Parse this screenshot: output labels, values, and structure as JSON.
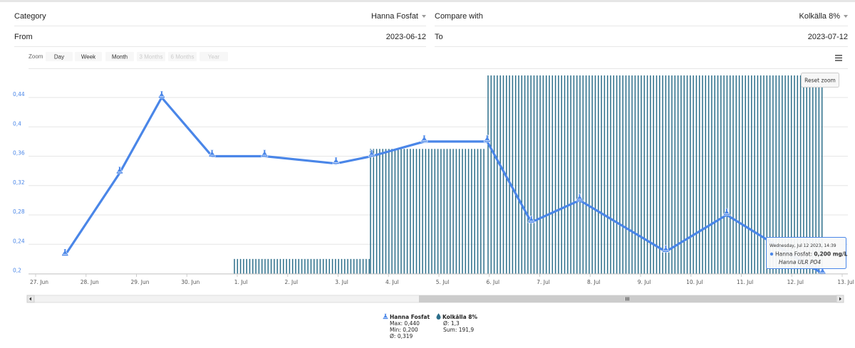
{
  "form": {
    "category_label": "Category",
    "category_value": "Hanna Fosfat",
    "compare_label": "Compare with",
    "compare_value": "Kolkälla 8%",
    "from_label": "From",
    "from_value": "2023-06-12",
    "to_label": "To",
    "to_value": "2023-07-12"
  },
  "zoom": {
    "label": "Zoom",
    "buttons": [
      "Day",
      "Week",
      "Month",
      "3 Months",
      "6 Months",
      "Year"
    ],
    "disabled": [
      false,
      false,
      false,
      true,
      true,
      true
    ]
  },
  "reset_zoom_label": "Reset zoom",
  "tooltip": {
    "date": "Wednesday, Jul 12 2023, 14:39",
    "series": "Hanna Fosfat",
    "value": "0,200 mg/L",
    "sub": "Hanna ULR PO4"
  },
  "legend": [
    {
      "name": "Hanna Fosfat",
      "stats": [
        "Max: 0,440",
        "Min: 0,200",
        "Ø: 0,319"
      ]
    },
    {
      "name": "Kolkälla 8%",
      "stats": [
        "Ø: 1,3",
        "Sum: 191,9"
      ]
    }
  ],
  "colors": {
    "line": "#4a86e8",
    "bars": "#2c6e8a",
    "axis_label": "#4a86e8"
  },
  "chart_data": {
    "type": "line",
    "x_unit": "days",
    "x_ticks": [
      "27. Jun",
      "28. Jun",
      "29. Jun",
      "30. Jun",
      "1. Jul",
      "2. Jul",
      "3. Jul",
      "4. Jul",
      "5. Jul",
      "6. Jul",
      "7. Jul",
      "8. Jul",
      "9. Jul",
      "10. Jul",
      "11. Jul",
      "12. Jul",
      "13. Jul"
    ],
    "y_ticks": [
      "0,2",
      "0,24",
      "0,28",
      "0,32",
      "0,36",
      "0,4",
      "0,44"
    ],
    "ylim": [
      0.2,
      0.45
    ],
    "grid": true,
    "series": [
      {
        "name": "Hanna Fosfat",
        "points": [
          {
            "x": "2023-06-27 14:00",
            "y": 0.225
          },
          {
            "x": "2023-06-28 16:00",
            "y": 0.337
          },
          {
            "x": "2023-06-29 12:00",
            "y": 0.44
          },
          {
            "x": "2023-06-30 12:00",
            "y": 0.36
          },
          {
            "x": "2023-07-01 13:00",
            "y": 0.36
          },
          {
            "x": "2023-07-02 23:00",
            "y": 0.35
          },
          {
            "x": "2023-07-03 16:00",
            "y": 0.36
          },
          {
            "x": "2023-07-04 17:00",
            "y": 0.38
          },
          {
            "x": "2023-07-05 23:00",
            "y": 0.38
          },
          {
            "x": "2023-07-06 20:00",
            "y": 0.27
          },
          {
            "x": "2023-07-07 19:00",
            "y": 0.3
          },
          {
            "x": "2023-07-09 12:00",
            "y": 0.23
          },
          {
            "x": "2023-07-10 17:00",
            "y": 0.28
          },
          {
            "x": "2023-07-12 14:39",
            "y": 0.2
          }
        ]
      },
      {
        "name": "Kolkälla 8%",
        "type": "column",
        "segments": [
          {
            "from": "2023-06-30 22:00",
            "to": "2023-07-03 15:00",
            "level": 0.22
          },
          {
            "from": "2023-07-03 15:00",
            "to": "2023-07-05 23:00",
            "level": 0.37
          },
          {
            "from": "2023-07-05 23:00",
            "to": "2023-07-12 15:00",
            "level": 0.47
          }
        ]
      }
    ]
  }
}
